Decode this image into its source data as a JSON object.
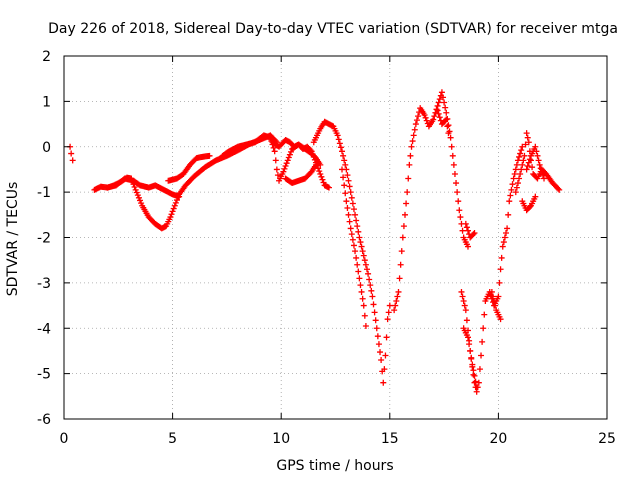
{
  "chart_data": {
    "type": "scatter",
    "title": "Day 226 of 2018, Sidereal Day-to-day VTEC variation (SDTVAR) for receiver mtga",
    "xlabel": "GPS time / hours",
    "ylabel": "SDTVAR / TECUs",
    "xlim": [
      0,
      25
    ],
    "ylim": [
      -6,
      2
    ],
    "x_ticks": [
      0,
      5,
      10,
      15,
      20,
      25
    ],
    "x_tick_labels": [
      "0",
      "5",
      "10",
      "15",
      "20",
      "25"
    ],
    "y_ticks": [
      -6,
      -5,
      -4,
      -3,
      -2,
      -1,
      0,
      1,
      2
    ],
    "y_tick_labels": [
      "-6",
      "-5",
      "-4",
      "-3",
      "-2",
      "-1",
      "0",
      "1",
      "2"
    ],
    "grid": true,
    "marker": "+",
    "color": "#ff0000",
    "series": [
      {
        "name": "SDTVAR",
        "segments": [
          [
            [
              0.28,
              0.0
            ],
            [
              0.33,
              -0.15
            ],
            [
              0.4,
              -0.3
            ]
          ],
          [
            [
              1.4,
              -0.95
            ],
            [
              1.7,
              -0.88
            ],
            [
              2.0,
              -0.9
            ],
            [
              2.3,
              -0.85
            ],
            [
              2.6,
              -0.78
            ],
            [
              2.9,
              -0.68
            ],
            [
              3.1,
              -0.7
            ],
            [
              3.3,
              -0.95
            ],
            [
              3.6,
              -1.3
            ],
            [
              3.9,
              -1.55
            ],
            [
              4.2,
              -1.7
            ],
            [
              4.5,
              -1.8
            ],
            [
              4.7,
              -1.75
            ],
            [
              4.9,
              -1.55
            ],
            [
              5.1,
              -1.3
            ],
            [
              5.3,
              -1.05
            ],
            [
              5.6,
              -0.85
            ],
            [
              6.0,
              -0.65
            ],
            [
              6.5,
              -0.45
            ],
            [
              7.0,
              -0.3
            ],
            [
              7.5,
              -0.2
            ],
            [
              8.0,
              -0.08
            ],
            [
              8.5,
              0.05
            ],
            [
              9.0,
              0.15
            ],
            [
              9.5,
              0.25
            ],
            [
              9.8,
              0.1
            ]
          ],
          [
            [
              2.0,
              -0.9
            ],
            [
              2.4,
              -0.85
            ],
            [
              2.8,
              -0.7
            ],
            [
              3.2,
              -0.75
            ],
            [
              3.5,
              -0.85
            ],
            [
              3.9,
              -0.9
            ],
            [
              4.2,
              -0.85
            ],
            [
              4.6,
              -0.95
            ],
            [
              5.0,
              -1.05
            ],
            [
              5.3,
              -1.1
            ]
          ],
          [
            [
              4.8,
              -0.75
            ],
            [
              5.2,
              -0.7
            ],
            [
              5.5,
              -0.6
            ],
            [
              5.8,
              -0.4
            ],
            [
              6.1,
              -0.25
            ],
            [
              6.4,
              -0.22
            ],
            [
              6.7,
              -0.2
            ]
          ],
          [
            [
              7.3,
              -0.2
            ],
            [
              7.6,
              -0.1
            ],
            [
              8.0,
              0.0
            ],
            [
              8.4,
              0.05
            ],
            [
              8.8,
              0.1
            ],
            [
              9.2,
              0.25
            ],
            [
              9.5,
              0.2
            ],
            [
              9.7,
              -0.1
            ],
            [
              9.8,
              -0.5
            ],
            [
              9.9,
              -0.75
            ],
            [
              10.1,
              -0.55
            ],
            [
              10.3,
              -0.3
            ],
            [
              10.5,
              -0.05
            ],
            [
              10.8,
              0.05
            ],
            [
              11.1,
              -0.05
            ],
            [
              11.4,
              -0.15
            ],
            [
              11.6,
              -0.25
            ],
            [
              11.8,
              -0.4
            ]
          ],
          [
            [
              9.6,
              0.1
            ],
            [
              9.9,
              0.0
            ],
            [
              10.2,
              0.15
            ],
            [
              10.4,
              0.1
            ],
            [
              10.6,
              0.0
            ],
            [
              10.8,
              0.05
            ],
            [
              11.0,
              -0.05
            ],
            [
              11.2,
              0.0
            ],
            [
              11.4,
              -0.1
            ],
            [
              11.6,
              -0.35
            ],
            [
              11.8,
              -0.6
            ],
            [
              12.0,
              -0.85
            ],
            [
              12.2,
              -0.9
            ]
          ],
          [
            [
              10.2,
              -0.7
            ],
            [
              10.5,
              -0.8
            ],
            [
              10.8,
              -0.75
            ],
            [
              11.1,
              -0.7
            ],
            [
              11.4,
              -0.55
            ],
            [
              11.6,
              -0.4
            ]
          ],
          [
            [
              11.5,
              0.1
            ],
            [
              11.8,
              0.4
            ],
            [
              12.0,
              0.55
            ],
            [
              12.2,
              0.5
            ],
            [
              12.4,
              0.45
            ],
            [
              12.6,
              0.25
            ],
            [
              12.8,
              -0.1
            ],
            [
              13.0,
              -0.5
            ],
            [
              13.2,
              -1.0
            ],
            [
              13.4,
              -1.5
            ],
            [
              13.6,
              -2.0
            ],
            [
              13.8,
              -2.4
            ],
            [
              14.0,
              -2.8
            ],
            [
              14.2,
              -3.3
            ],
            [
              14.4,
              -4.0
            ],
            [
              14.6,
              -4.7
            ],
            [
              14.7,
              -5.2
            ],
            [
              14.8,
              -4.6
            ],
            [
              14.9,
              -3.8
            ],
            [
              15.0,
              -3.5
            ]
          ],
          [
            [
              12.8,
              -0.5
            ],
            [
              13.0,
              -1.2
            ],
            [
              13.2,
              -1.8
            ],
            [
              13.4,
              -2.3
            ],
            [
              13.6,
              -2.9
            ],
            [
              13.8,
              -3.5
            ],
            [
              13.9,
              -3.95
            ]
          ],
          [
            [
              15.2,
              -3.6
            ],
            [
              15.4,
              -3.2
            ],
            [
              15.6,
              -2.0
            ],
            [
              15.8,
              -1.0
            ],
            [
              15.9,
              -0.4
            ],
            [
              16.0,
              0.0
            ],
            [
              16.2,
              0.5
            ],
            [
              16.4,
              0.85
            ],
            [
              16.6,
              0.7
            ],
            [
              16.8,
              0.45
            ],
            [
              17.0,
              0.6
            ],
            [
              17.2,
              0.9
            ],
            [
              17.4,
              1.2
            ],
            [
              17.6,
              0.75
            ],
            [
              17.8,
              0.2
            ],
            [
              18.0,
              -0.6
            ],
            [
              18.2,
              -1.4
            ],
            [
              18.4,
              -2.0
            ],
            [
              18.6,
              -2.2
            ]
          ],
          [
            [
              17.2,
              0.8
            ],
            [
              17.4,
              0.5
            ],
            [
              17.6,
              0.6
            ],
            [
              17.7,
              0.3
            ]
          ],
          [
            [
              18.5,
              -1.7
            ],
            [
              18.7,
              -2.0
            ],
            [
              18.9,
              -1.9
            ]
          ],
          [
            [
              18.3,
              -3.2
            ],
            [
              18.5,
              -3.6
            ],
            [
              18.7,
              -4.5
            ],
            [
              18.9,
              -5.2
            ],
            [
              19.0,
              -5.4
            ],
            [
              19.1,
              -5.2
            ],
            [
              19.2,
              -4.6
            ],
            [
              19.3,
              -4.0
            ],
            [
              19.4,
              -3.4
            ],
            [
              19.6,
              -3.2
            ],
            [
              19.8,
              -3.5
            ],
            [
              20.0,
              -3.3
            ],
            [
              20.1,
              -2.7
            ],
            [
              20.2,
              -2.2
            ],
            [
              20.4,
              -1.8
            ],
            [
              20.5,
              -1.2
            ],
            [
              20.7,
              -0.7
            ],
            [
              20.9,
              -0.3
            ],
            [
              21.1,
              0.0
            ]
          ],
          [
            [
              18.4,
              -4.0
            ],
            [
              18.6,
              -4.2
            ],
            [
              18.8,
              -4.8
            ],
            [
              19.0,
              -5.3
            ]
          ],
          [
            [
              19.7,
              -3.2
            ],
            [
              19.9,
              -3.6
            ],
            [
              20.1,
              -3.8
            ]
          ],
          [
            [
              20.8,
              -1.0
            ],
            [
              21.0,
              -0.6
            ],
            [
              21.2,
              -0.2
            ],
            [
              21.3,
              0.3
            ],
            [
              21.4,
              0.1
            ],
            [
              21.5,
              -0.3
            ],
            [
              21.6,
              -0.6
            ],
            [
              21.8,
              -0.7
            ],
            [
              22.0,
              -0.5
            ],
            [
              22.2,
              -0.6
            ],
            [
              22.5,
              -0.8
            ],
            [
              22.8,
              -0.95
            ]
          ],
          [
            [
              21.1,
              -1.2
            ],
            [
              21.3,
              -1.4
            ],
            [
              21.5,
              -1.3
            ],
            [
              21.7,
              -1.1
            ]
          ],
          [
            [
              21.3,
              -0.5
            ],
            [
              21.5,
              -0.2
            ],
            [
              21.7,
              0.0
            ],
            [
              21.9,
              -0.4
            ],
            [
              22.1,
              -0.7
            ]
          ]
        ]
      }
    ]
  }
}
